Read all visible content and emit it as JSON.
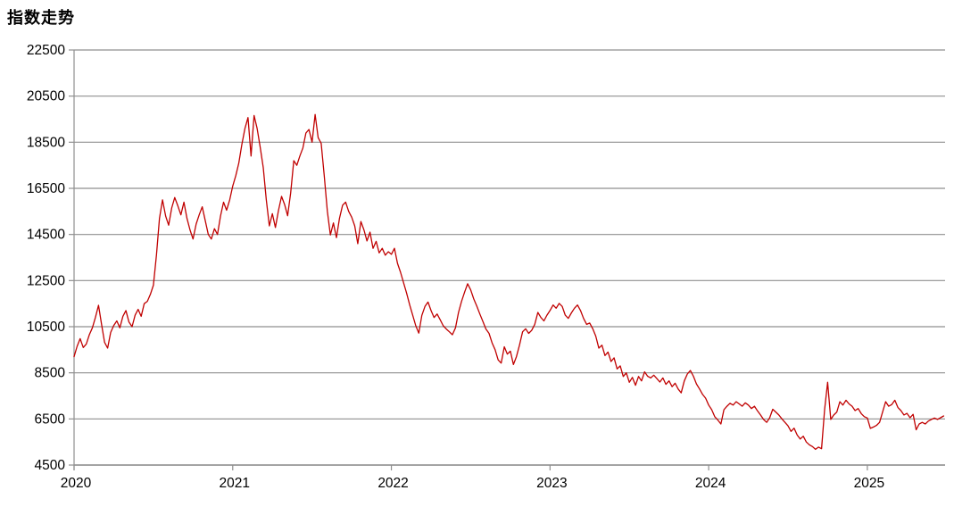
{
  "title": "指数走势",
  "colors": {
    "line": "#C00000",
    "grid": "#8f8f8f",
    "axis": "#8f8f8f",
    "text": "#000000",
    "background": "#ffffff"
  },
  "chart_data": {
    "type": "line",
    "title": "指数走势",
    "xlabel": "",
    "ylabel": "",
    "grid": "horizontal",
    "legend": "none",
    "ylim": [
      4500,
      22500
    ],
    "xlim": [
      2020,
      2025.49
    ],
    "y_ticks": [
      22500,
      20500,
      18500,
      16500,
      14500,
      12500,
      10500,
      8500,
      6500,
      4500
    ],
    "x_ticks": [
      "2020",
      "2021",
      "2022",
      "2023",
      "2024",
      "2025"
    ],
    "series": [
      {
        "name": "指数",
        "color": "#C00000",
        "start_year": 2020,
        "points_per_year": 52,
        "values": [
          9200,
          9650,
          9980,
          9600,
          9750,
          10150,
          10450,
          10900,
          11430,
          10600,
          9820,
          9570,
          10250,
          10550,
          10750,
          10450,
          10950,
          11200,
          10700,
          10500,
          11000,
          11250,
          10950,
          11500,
          11600,
          11900,
          12300,
          13600,
          15200,
          16000,
          15300,
          14900,
          15650,
          16100,
          15750,
          15350,
          15900,
          15200,
          14700,
          14300,
          14950,
          15350,
          15700,
          15100,
          14500,
          14300,
          14750,
          14500,
          15300,
          15900,
          15550,
          16000,
          16600,
          17050,
          17600,
          18400,
          19100,
          19570,
          17900,
          19660,
          19100,
          18300,
          17400,
          16000,
          14870,
          15400,
          14800,
          15550,
          16150,
          15800,
          15310,
          16300,
          17700,
          17500,
          17900,
          18250,
          18900,
          19050,
          18500,
          19700,
          18700,
          18450,
          17060,
          15510,
          14480,
          15000,
          14360,
          15200,
          15770,
          15900,
          15500,
          15250,
          14870,
          14100,
          15060,
          14700,
          14220,
          14600,
          13900,
          14200,
          13700,
          13900,
          13600,
          13750,
          13640,
          13900,
          13250,
          12860,
          12410,
          11960,
          11440,
          10990,
          10540,
          10220,
          10990,
          11380,
          11570,
          11200,
          10900,
          11050,
          10800,
          10540,
          10400,
          10280,
          10150,
          10450,
          11120,
          11600,
          12000,
          12360,
          12100,
          11700,
          11390,
          11050,
          10730,
          10400,
          10210,
          9800,
          9500,
          9060,
          8920,
          9630,
          9310,
          9440,
          8860,
          9200,
          9700,
          10280,
          10410,
          10210,
          10340,
          10600,
          11120,
          10900,
          10750,
          11000,
          11200,
          11440,
          11300,
          11510,
          11380,
          11000,
          10860,
          11100,
          11300,
          11440,
          11200,
          10860,
          10600,
          10660,
          10410,
          10090,
          9570,
          9700,
          9250,
          9400,
          8990,
          9150,
          8670,
          8800,
          8340,
          8500,
          8090,
          8300,
          7960,
          8340,
          8150,
          8540,
          8350,
          8280,
          8400,
          8250,
          8100,
          8280,
          8000,
          8150,
          7900,
          8050,
          7800,
          7630,
          8150,
          8450,
          8600,
          8350,
          8020,
          7800,
          7560,
          7400,
          7100,
          6900,
          6600,
          6450,
          6280,
          6900,
          7050,
          7180,
          7100,
          7250,
          7150,
          7050,
          7200,
          7100,
          6950,
          7050,
          6850,
          6670,
          6480,
          6350,
          6550,
          6920,
          6800,
          6670,
          6500,
          6350,
          6200,
          5960,
          6100,
          5800,
          5630,
          5750,
          5500,
          5380,
          5300,
          5180,
          5280,
          5210,
          6900,
          8090,
          6480,
          6670,
          6800,
          7250,
          7100,
          7310,
          7150,
          7050,
          6860,
          6950,
          6730,
          6600,
          6540,
          6090,
          6150,
          6220,
          6350,
          6800,
          7250,
          7050,
          7120,
          7310,
          7000,
          6860,
          6670,
          6740,
          6550,
          6700,
          6030,
          6280,
          6350,
          6280,
          6410,
          6480,
          6540,
          6480,
          6550,
          6630
        ]
      }
    ]
  }
}
